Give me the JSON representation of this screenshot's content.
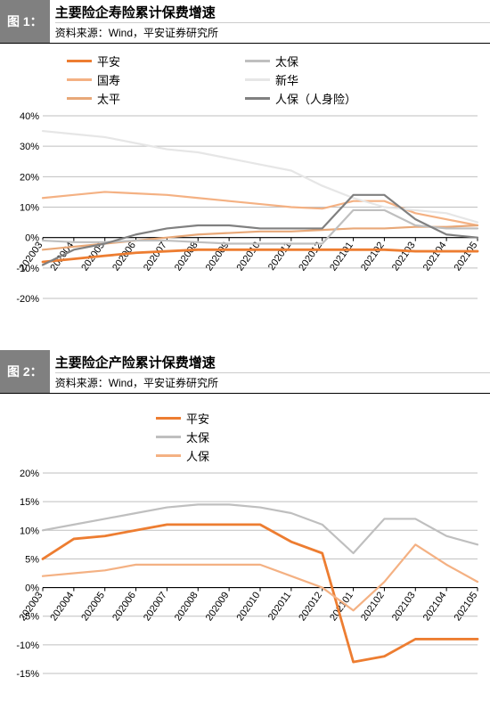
{
  "chart1": {
    "badge": "图 1：",
    "title": "主要险企寿险累计保费增速",
    "source": "资料来源：Wind，平安证券研究所",
    "type": "line",
    "x_categories": [
      "202003",
      "202004",
      "202005",
      "202006",
      "202007",
      "202008",
      "202009",
      "202010",
      "202011",
      "202012",
      "202101",
      "202102",
      "202103",
      "202104",
      "202105"
    ],
    "ylim": [
      -20,
      40
    ],
    "ytick_step": 10,
    "y_format": "percent",
    "grid_color": "#bfbfbf",
    "axis_color": "#000000",
    "background_color": "#ffffff",
    "label_fontsize": 11,
    "line_width": 2.2,
    "series": [
      {
        "name": "平安",
        "color": "#ed7d31",
        "width": 2.8,
        "values": [
          -8,
          -7,
          -6,
          -5,
          -4.5,
          -4,
          -4,
          -4,
          -4,
          -4,
          -4,
          -4,
          -4.5,
          -4.5,
          -4.5
        ]
      },
      {
        "name": "国寿",
        "color": "#f4b183",
        "width": 2.2,
        "values": [
          13,
          14,
          15,
          14.5,
          14,
          13,
          12,
          11,
          10,
          9.5,
          12,
          12,
          8,
          6,
          4
        ]
      },
      {
        "name": "太平",
        "color": "#e8a878",
        "width": 2.2,
        "values": [
          -4,
          -3,
          -2,
          -1,
          0,
          1,
          1.5,
          2,
          2,
          2.5,
          3,
          3,
          3.5,
          3.5,
          4
        ]
      },
      {
        "name": "太保",
        "color": "#bfbfbf",
        "width": 2.2,
        "values": [
          -1,
          -1.5,
          -1.5,
          -1,
          -1,
          -1.5,
          -2,
          -2,
          -2,
          -2,
          9,
          9,
          4,
          3,
          3
        ]
      },
      {
        "name": "新华",
        "color": "#e6e6e6",
        "width": 2.2,
        "values": [
          35,
          34,
          33,
          31,
          29,
          28,
          26,
          24,
          22,
          17,
          13,
          10,
          9,
          8,
          5
        ]
      },
      {
        "name": "人保（人身险）",
        "color": "#808080",
        "width": 2.2,
        "values": [
          -9,
          -4,
          -2,
          1,
          3,
          4,
          4,
          3,
          3,
          3,
          14,
          14,
          6,
          1,
          0
        ]
      }
    ],
    "legend_layout": [
      [
        "平安",
        "国寿",
        "太平"
      ],
      [
        "太保",
        "新华",
        "人保（人身险）"
      ]
    ]
  },
  "chart2": {
    "badge": "图 2：",
    "title": "主要险企产险累计保费增速",
    "source": "资料来源：Wind，平安证券研究所",
    "type": "line",
    "x_categories": [
      "202003",
      "202004",
      "202005",
      "202006",
      "202007",
      "202008",
      "202009",
      "202010",
      "202011",
      "202012",
      "202101",
      "202102",
      "202103",
      "202104",
      "202105"
    ],
    "ylim": [
      -15,
      20
    ],
    "ytick_step": 5,
    "y_format": "percent",
    "grid_color": "#bfbfbf",
    "axis_color": "#000000",
    "background_color": "#ffffff",
    "label_fontsize": 11,
    "line_width": 2.2,
    "series": [
      {
        "name": "平安",
        "color": "#ed7d31",
        "width": 2.8,
        "values": [
          5,
          8.5,
          9,
          10,
          11,
          11,
          11,
          11,
          8,
          6,
          -13,
          -12,
          -9,
          -9,
          -9
        ]
      },
      {
        "name": "太保",
        "color": "#bfbfbf",
        "width": 2.2,
        "values": [
          10,
          11,
          12,
          13,
          14,
          14.5,
          14.5,
          14,
          13,
          11,
          6,
          12,
          12,
          9,
          7.5
        ]
      },
      {
        "name": "人保",
        "color": "#f4b183",
        "width": 2.2,
        "values": [
          2,
          2.5,
          3,
          4,
          4,
          4,
          4,
          4,
          2,
          0,
          -4,
          1,
          7.5,
          4,
          1
        ]
      }
    ],
    "legend_layout": [
      [
        "平安",
        "太保",
        "人保"
      ]
    ]
  }
}
